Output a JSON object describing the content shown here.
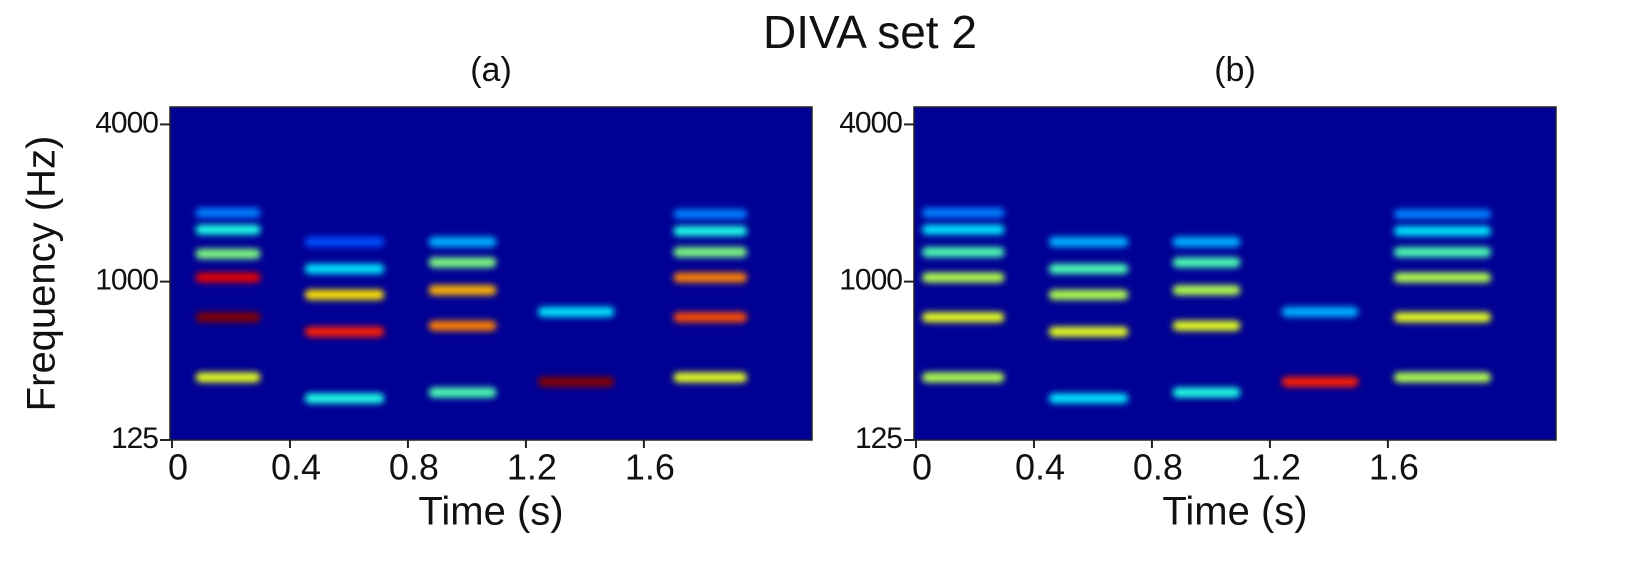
{
  "chart_data": {
    "type": "spectrogram",
    "title": "DIVA set 2",
    "colormap": "jet",
    "panels": [
      {
        "subtitle": "(a)",
        "xlabel": "Time (s)",
        "ylabel": "Frequency (Hz)",
        "yscale": "erb",
        "xlim": [
          0,
          2.17
        ],
        "ylim": [
          125,
          4620
        ],
        "xticks": [
          0,
          0.4,
          0.8,
          1.2,
          1.6
        ],
        "yticks": [
          125,
          1000,
          4000
        ],
        "segments": [
          {
            "start": 0.08,
            "end": 0.3,
            "harmonics": [
              350,
              700,
              1040,
              1300,
              1620,
              1880
            ],
            "levels": [
              0.6,
              1.0,
              0.9,
              0.5,
              0.4,
              0.25
            ]
          },
          {
            "start": 0.45,
            "end": 0.72,
            "harmonics": [
              262,
              600,
              880,
              1130,
              1450
            ],
            "levels": [
              0.4,
              0.85,
              0.65,
              0.35,
              0.2
            ]
          },
          {
            "start": 0.87,
            "end": 1.1,
            "harmonics": [
              285,
              640,
              920,
              1200,
              1450
            ],
            "levels": [
              0.45,
              0.75,
              0.7,
              0.5,
              0.3
            ]
          },
          {
            "start": 1.24,
            "end": 1.5,
            "harmonics": [
              330,
              740
            ],
            "levels": [
              1.0,
              0.35
            ]
          },
          {
            "start": 1.7,
            "end": 1.95,
            "harmonics": [
              350,
              700,
              1040,
              1320,
              1600,
              1860
            ],
            "levels": [
              0.6,
              0.8,
              0.75,
              0.5,
              0.4,
              0.25
            ]
          }
        ]
      },
      {
        "subtitle": "(b)",
        "xlabel": "Time (s)",
        "yscale": "erb",
        "xlim": [
          0,
          2.17
        ],
        "ylim": [
          125,
          4620
        ],
        "xticks": [
          0,
          0.4,
          0.8,
          1.2,
          1.6
        ],
        "yticks": [
          125,
          1000,
          4000
        ],
        "segments": [
          {
            "start": 0.02,
            "end": 0.3,
            "harmonics": [
              350,
              700,
              1040,
              1320,
              1620,
              1880
            ],
            "levels": [
              0.55,
              0.6,
              0.55,
              0.45,
              0.35,
              0.25
            ]
          },
          {
            "start": 0.45,
            "end": 0.72,
            "harmonics": [
              262,
              600,
              880,
              1130,
              1450
            ],
            "levels": [
              0.35,
              0.6,
              0.55,
              0.45,
              0.3
            ]
          },
          {
            "start": 0.87,
            "end": 1.1,
            "harmonics": [
              285,
              640,
              920,
              1200,
              1450
            ],
            "levels": [
              0.4,
              0.6,
              0.55,
              0.45,
              0.3
            ]
          },
          {
            "start": 1.24,
            "end": 1.5,
            "harmonics": [
              330,
              740
            ],
            "levels": [
              0.85,
              0.3
            ]
          },
          {
            "start": 1.62,
            "end": 1.95,
            "harmonics": [
              350,
              700,
              1040,
              1320,
              1600,
              1860
            ],
            "levels": [
              0.55,
              0.6,
              0.55,
              0.45,
              0.35,
              0.25
            ]
          }
        ]
      }
    ]
  }
}
